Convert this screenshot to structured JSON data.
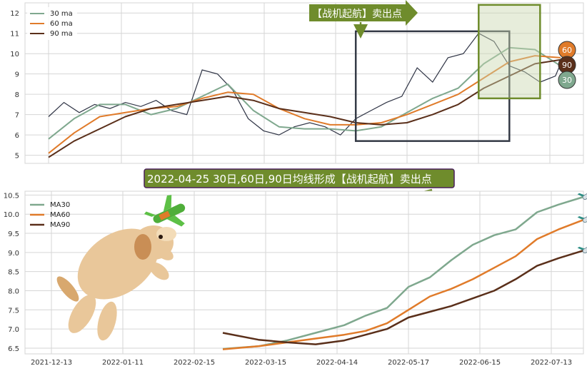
{
  "colors": {
    "ma30": "#7fa88e",
    "ma60": "#e07b2a",
    "ma90": "#5a2f1a",
    "price": "#2f3445",
    "grid": "#d6d6d6",
    "box_dark": "#343a46",
    "box_green": "#6f8c2c",
    "banner_fill": "#6f8c2c",
    "banner_text": "#ffffff",
    "badge_ring": "#333333"
  },
  "top_annotation": {
    "label": "【战机起航】卖出点"
  },
  "mid_banner": {
    "label": "2022-04-25 30日,60日,90日均线形成【战机起航】卖出点"
  },
  "badges": [
    {
      "name": "badge-60",
      "text": "60",
      "fill": "#e07b2a"
    },
    {
      "name": "badge-90",
      "text": "90",
      "fill": "#5a2f1a"
    },
    {
      "name": "badge-30",
      "text": "30",
      "fill": "#7fa88e"
    }
  ],
  "icons": [
    "airplane-icon",
    "dog-illustration",
    "toy-airplane-icon"
  ],
  "chart_data": [
    {
      "type": "line",
      "panel": "top",
      "ylim": [
        4.6,
        12.5
      ],
      "yticks": [
        5,
        6,
        7,
        8,
        9,
        10,
        11,
        12
      ],
      "grid": true,
      "legend_position": "top-left",
      "series": [
        {
          "name": "30 ma",
          "key": "ma30",
          "x": [
            0,
            5,
            10,
            15,
            20,
            25,
            30,
            35,
            40,
            45,
            50,
            55,
            60,
            65,
            70,
            75,
            80,
            85,
            90,
            95,
            100
          ],
          "values": [
            5.8,
            6.8,
            7.5,
            7.5,
            7.0,
            7.3,
            7.9,
            8.5,
            7.2,
            6.4,
            6.3,
            6.3,
            6.2,
            6.4,
            7.1,
            7.8,
            8.3,
            9.5,
            10.3,
            10.2,
            9.4
          ]
        },
        {
          "name": "60 ma",
          "key": "ma60",
          "x": [
            0,
            5,
            10,
            15,
            20,
            25,
            30,
            35,
            40,
            45,
            50,
            55,
            60,
            65,
            70,
            75,
            80,
            85,
            90,
            95,
            100
          ],
          "values": [
            5.1,
            6.1,
            6.9,
            7.1,
            7.3,
            7.4,
            7.8,
            8.1,
            8.0,
            7.3,
            6.8,
            6.5,
            6.5,
            6.6,
            7.0,
            7.5,
            8.0,
            8.8,
            9.6,
            9.9,
            9.8
          ]
        },
        {
          "name": "90 ma",
          "key": "ma90",
          "x": [
            0,
            5,
            10,
            15,
            20,
            25,
            30,
            35,
            40,
            45,
            50,
            55,
            60,
            65,
            70,
            75,
            80,
            85,
            90,
            95,
            100
          ],
          "values": [
            4.9,
            5.7,
            6.3,
            6.9,
            7.3,
            7.5,
            7.7,
            7.9,
            7.7,
            7.3,
            7.1,
            6.9,
            6.6,
            6.5,
            6.6,
            7.0,
            7.5,
            8.3,
            8.9,
            9.5,
            9.7
          ]
        },
        {
          "name": "price",
          "key": "price",
          "x": [
            0,
            3,
            6,
            9,
            12,
            15,
            18,
            21,
            24,
            27,
            30,
            33,
            36,
            39,
            42,
            45,
            48,
            51,
            54,
            57,
            60,
            63,
            66,
            69,
            72,
            75,
            78,
            81,
            84,
            87,
            90,
            93,
            96,
            99,
            100
          ],
          "values": [
            6.9,
            7.6,
            7.1,
            7.5,
            7.3,
            7.6,
            7.4,
            7.7,
            7.2,
            7.0,
            9.2,
            9.0,
            8.2,
            6.8,
            6.2,
            6.0,
            6.4,
            6.6,
            6.4,
            6.0,
            6.8,
            7.2,
            7.6,
            7.9,
            9.3,
            8.6,
            9.8,
            10.0,
            11.0,
            10.6,
            9.4,
            9.1,
            8.6,
            8.9,
            9.5
          ]
        }
      ],
      "annotations": [
        {
          "type": "box",
          "name": "dark-highlight-box",
          "x": [
            60,
            90
          ],
          "y": [
            5.7,
            11.1
          ]
        },
        {
          "type": "box",
          "name": "green-highlight-box",
          "x": [
            84,
            96
          ],
          "y": [
            7.8,
            12.4
          ]
        }
      ]
    },
    {
      "type": "line",
      "panel": "bottom",
      "xticks": [
        "2021-12-13",
        "2022-01-11",
        "2022-02-15",
        "2022-03-15",
        "2022-04-14",
        "2022-05-17",
        "2022-06-15",
        "2022-07-13"
      ],
      "ylim": [
        6.35,
        10.6
      ],
      "yticks": [
        6.5,
        7.0,
        7.5,
        8.0,
        8.5,
        9.0,
        9.5,
        10.0,
        10.5
      ],
      "grid": true,
      "legend_position": "top-left",
      "series": [
        {
          "name": "MA30",
          "key": "ma30",
          "x": [
            2.4,
            2.9,
            3.3,
            3.7,
            4.1,
            4.4,
            4.7,
            5.0,
            5.3,
            5.6,
            5.9,
            6.2,
            6.5,
            6.8,
            7.1,
            7.45
          ],
          "values": [
            6.48,
            6.55,
            6.7,
            6.9,
            7.1,
            7.35,
            7.55,
            8.1,
            8.35,
            8.8,
            9.2,
            9.45,
            9.6,
            10.05,
            10.25,
            10.45
          ]
        },
        {
          "name": "MA60",
          "key": "ma60",
          "x": [
            2.4,
            2.9,
            3.3,
            3.7,
            4.1,
            4.4,
            4.7,
            5.0,
            5.3,
            5.6,
            5.9,
            6.2,
            6.5,
            6.8,
            7.1,
            7.45
          ],
          "values": [
            6.47,
            6.55,
            6.65,
            6.75,
            6.85,
            6.95,
            7.15,
            7.5,
            7.85,
            8.05,
            8.3,
            8.6,
            8.9,
            9.35,
            9.6,
            9.85
          ]
        },
        {
          "name": "MA90",
          "key": "ma90",
          "x": [
            2.4,
            2.9,
            3.3,
            3.7,
            4.1,
            4.4,
            4.7,
            5.0,
            5.3,
            5.6,
            5.9,
            6.2,
            6.5,
            6.8,
            7.1,
            7.45
          ],
          "values": [
            6.9,
            6.72,
            6.65,
            6.6,
            6.7,
            6.85,
            7.0,
            7.3,
            7.45,
            7.6,
            7.8,
            8.0,
            8.3,
            8.65,
            8.85,
            9.05
          ]
        }
      ]
    }
  ]
}
